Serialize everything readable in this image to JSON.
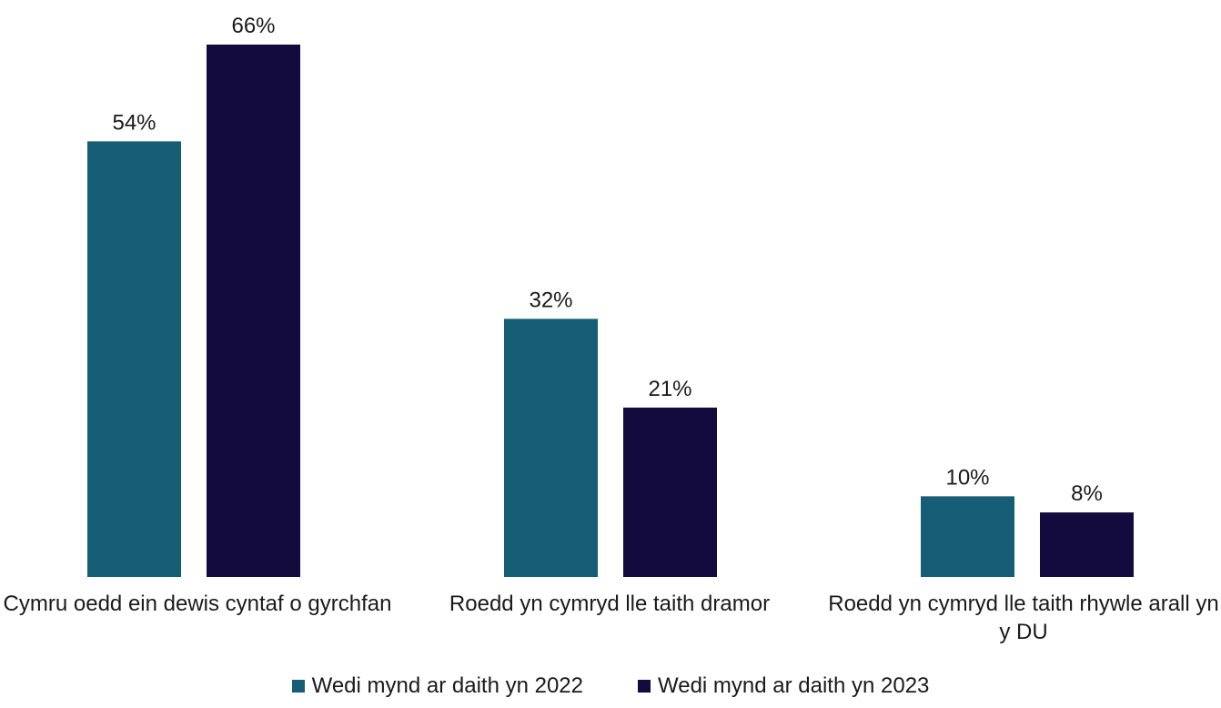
{
  "chart_data": {
    "type": "bar",
    "categories": [
      "Cymru oedd ein dewis cyntaf o gyrchfan",
      "Roedd yn cymryd lle taith dramor",
      "Roedd yn cymryd lle taith rhywle arall yn y DU"
    ],
    "series": [
      {
        "name": "Wedi mynd ar daith yn 2022",
        "values": [
          54,
          32,
          10
        ],
        "labels": [
          "54%",
          "32%",
          "10%"
        ],
        "color": "#155e75"
      },
      {
        "name": "Wedi mynd ar daith yn 2023",
        "values": [
          66,
          21,
          8
        ],
        "labels": [
          "66%",
          "21%",
          "8%"
        ],
        "color": "#130a3d"
      }
    ],
    "ylim": [
      0,
      70
    ],
    "grid": false,
    "legend_position": "bottom"
  }
}
